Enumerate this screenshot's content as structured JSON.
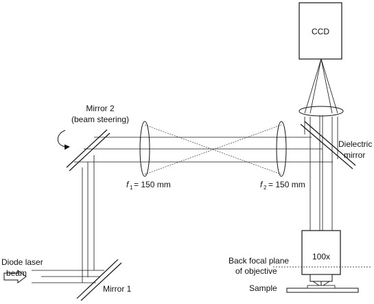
{
  "diagram": {
    "labels": {
      "ccd": "CCD",
      "mirror2_line1": "Mirror 2",
      "mirror2_line2": "(beam steering)",
      "dielectric_line1": "Dielectric",
      "dielectric_line2": "mirror",
      "f1_symbol": "f",
      "f1_sub": "1",
      "f1_value": "= 150 mm",
      "f2_symbol": "f",
      "f2_sub": "2",
      "f2_value": "= 150 mm",
      "objective": "100x",
      "back_focal_line1": "Back focal plane",
      "back_focal_line2": "of objective",
      "sample": "Sample",
      "laser_line1": "Diode laser",
      "laser_line2": "beam",
      "mirror1": "Mirror 1"
    },
    "colors": {
      "line": "#111111",
      "background": "#ffffff"
    }
  }
}
